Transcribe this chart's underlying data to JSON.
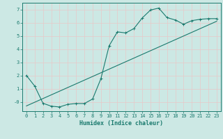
{
  "title": "",
  "xlabel": "Humidex (Indice chaleur)",
  "ylabel": "",
  "bg_color": "#cce8e4",
  "grid_color": "#e8c8c8",
  "line_color": "#1a7a6e",
  "xlim": [
    -0.5,
    23.5
  ],
  "ylim": [
    -0.7,
    7.5
  ],
  "xticks": [
    0,
    1,
    2,
    3,
    4,
    5,
    6,
    7,
    8,
    9,
    10,
    11,
    12,
    13,
    14,
    15,
    16,
    17,
    18,
    19,
    20,
    21,
    22,
    23
  ],
  "yticks": [
    0,
    1,
    2,
    3,
    4,
    5,
    6,
    7
  ],
  "ytick_labels": [
    "-0",
    "1",
    "2",
    "3",
    "4",
    "5",
    "6",
    "7"
  ],
  "curve1_x": [
    0,
    1,
    2,
    3,
    4,
    5,
    6,
    7,
    8,
    9,
    10,
    11,
    12,
    13,
    14,
    15,
    16,
    17,
    18,
    19,
    20,
    21,
    22,
    23
  ],
  "curve1_y": [
    2.0,
    1.2,
    -0.1,
    -0.32,
    -0.38,
    -0.18,
    -0.12,
    -0.12,
    0.22,
    1.75,
    4.25,
    5.3,
    5.22,
    5.55,
    6.35,
    6.95,
    7.1,
    6.38,
    6.2,
    5.88,
    6.15,
    6.25,
    6.3,
    6.3
  ],
  "curve2_x": [
    0,
    23
  ],
  "curve2_y": [
    -0.3,
    6.1
  ],
  "tick_fontsize": 5.0,
  "xlabel_fontsize": 6.0
}
